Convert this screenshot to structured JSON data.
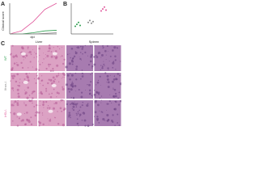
{
  "panel_a": {
    "label": "A",
    "ylabel": "Clinical score",
    "xlabel": "dpi",
    "x": [
      0,
      2,
      4,
      6,
      8
    ],
    "xlim": [
      0,
      8
    ],
    "ylim": [
      0,
      5
    ],
    "series": [
      {
        "color": "#e0559a",
        "values": [
          0,
          0.5,
          2,
          4,
          5
        ]
      },
      {
        "color": "#2e9e4f",
        "values": [
          0,
          0,
          0.2,
          0.5,
          0.6
        ]
      },
      {
        "color": "#8a8a8a",
        "values": [
          0,
          0,
          0,
          0.1,
          0.2
        ]
      }
    ]
  },
  "panel_b": {
    "label": "B",
    "ylim": [
      0,
      8
    ],
    "groups": [
      {
        "color": "#2e9e4f",
        "values": [
          2,
          2.5,
          3,
          2.2
        ]
      },
      {
        "color": "#8a8a8a",
        "values": [
          3,
          3.5,
          2.8,
          3.2
        ]
      },
      {
        "color": "#e0559a",
        "values": [
          6,
          6.5,
          7,
          6.2
        ]
      }
    ]
  },
  "panel_c": {
    "label": "C",
    "columns": [
      "Liver",
      "Spleen"
    ],
    "rows": [
      {
        "label": "WT",
        "color": "#2e9e4f"
      },
      {
        "label": "Ifnar-/-",
        "color": "#8a8a8a"
      },
      {
        "label": "Irf3-/-",
        "color": "#e0559a"
      }
    ]
  }
}
